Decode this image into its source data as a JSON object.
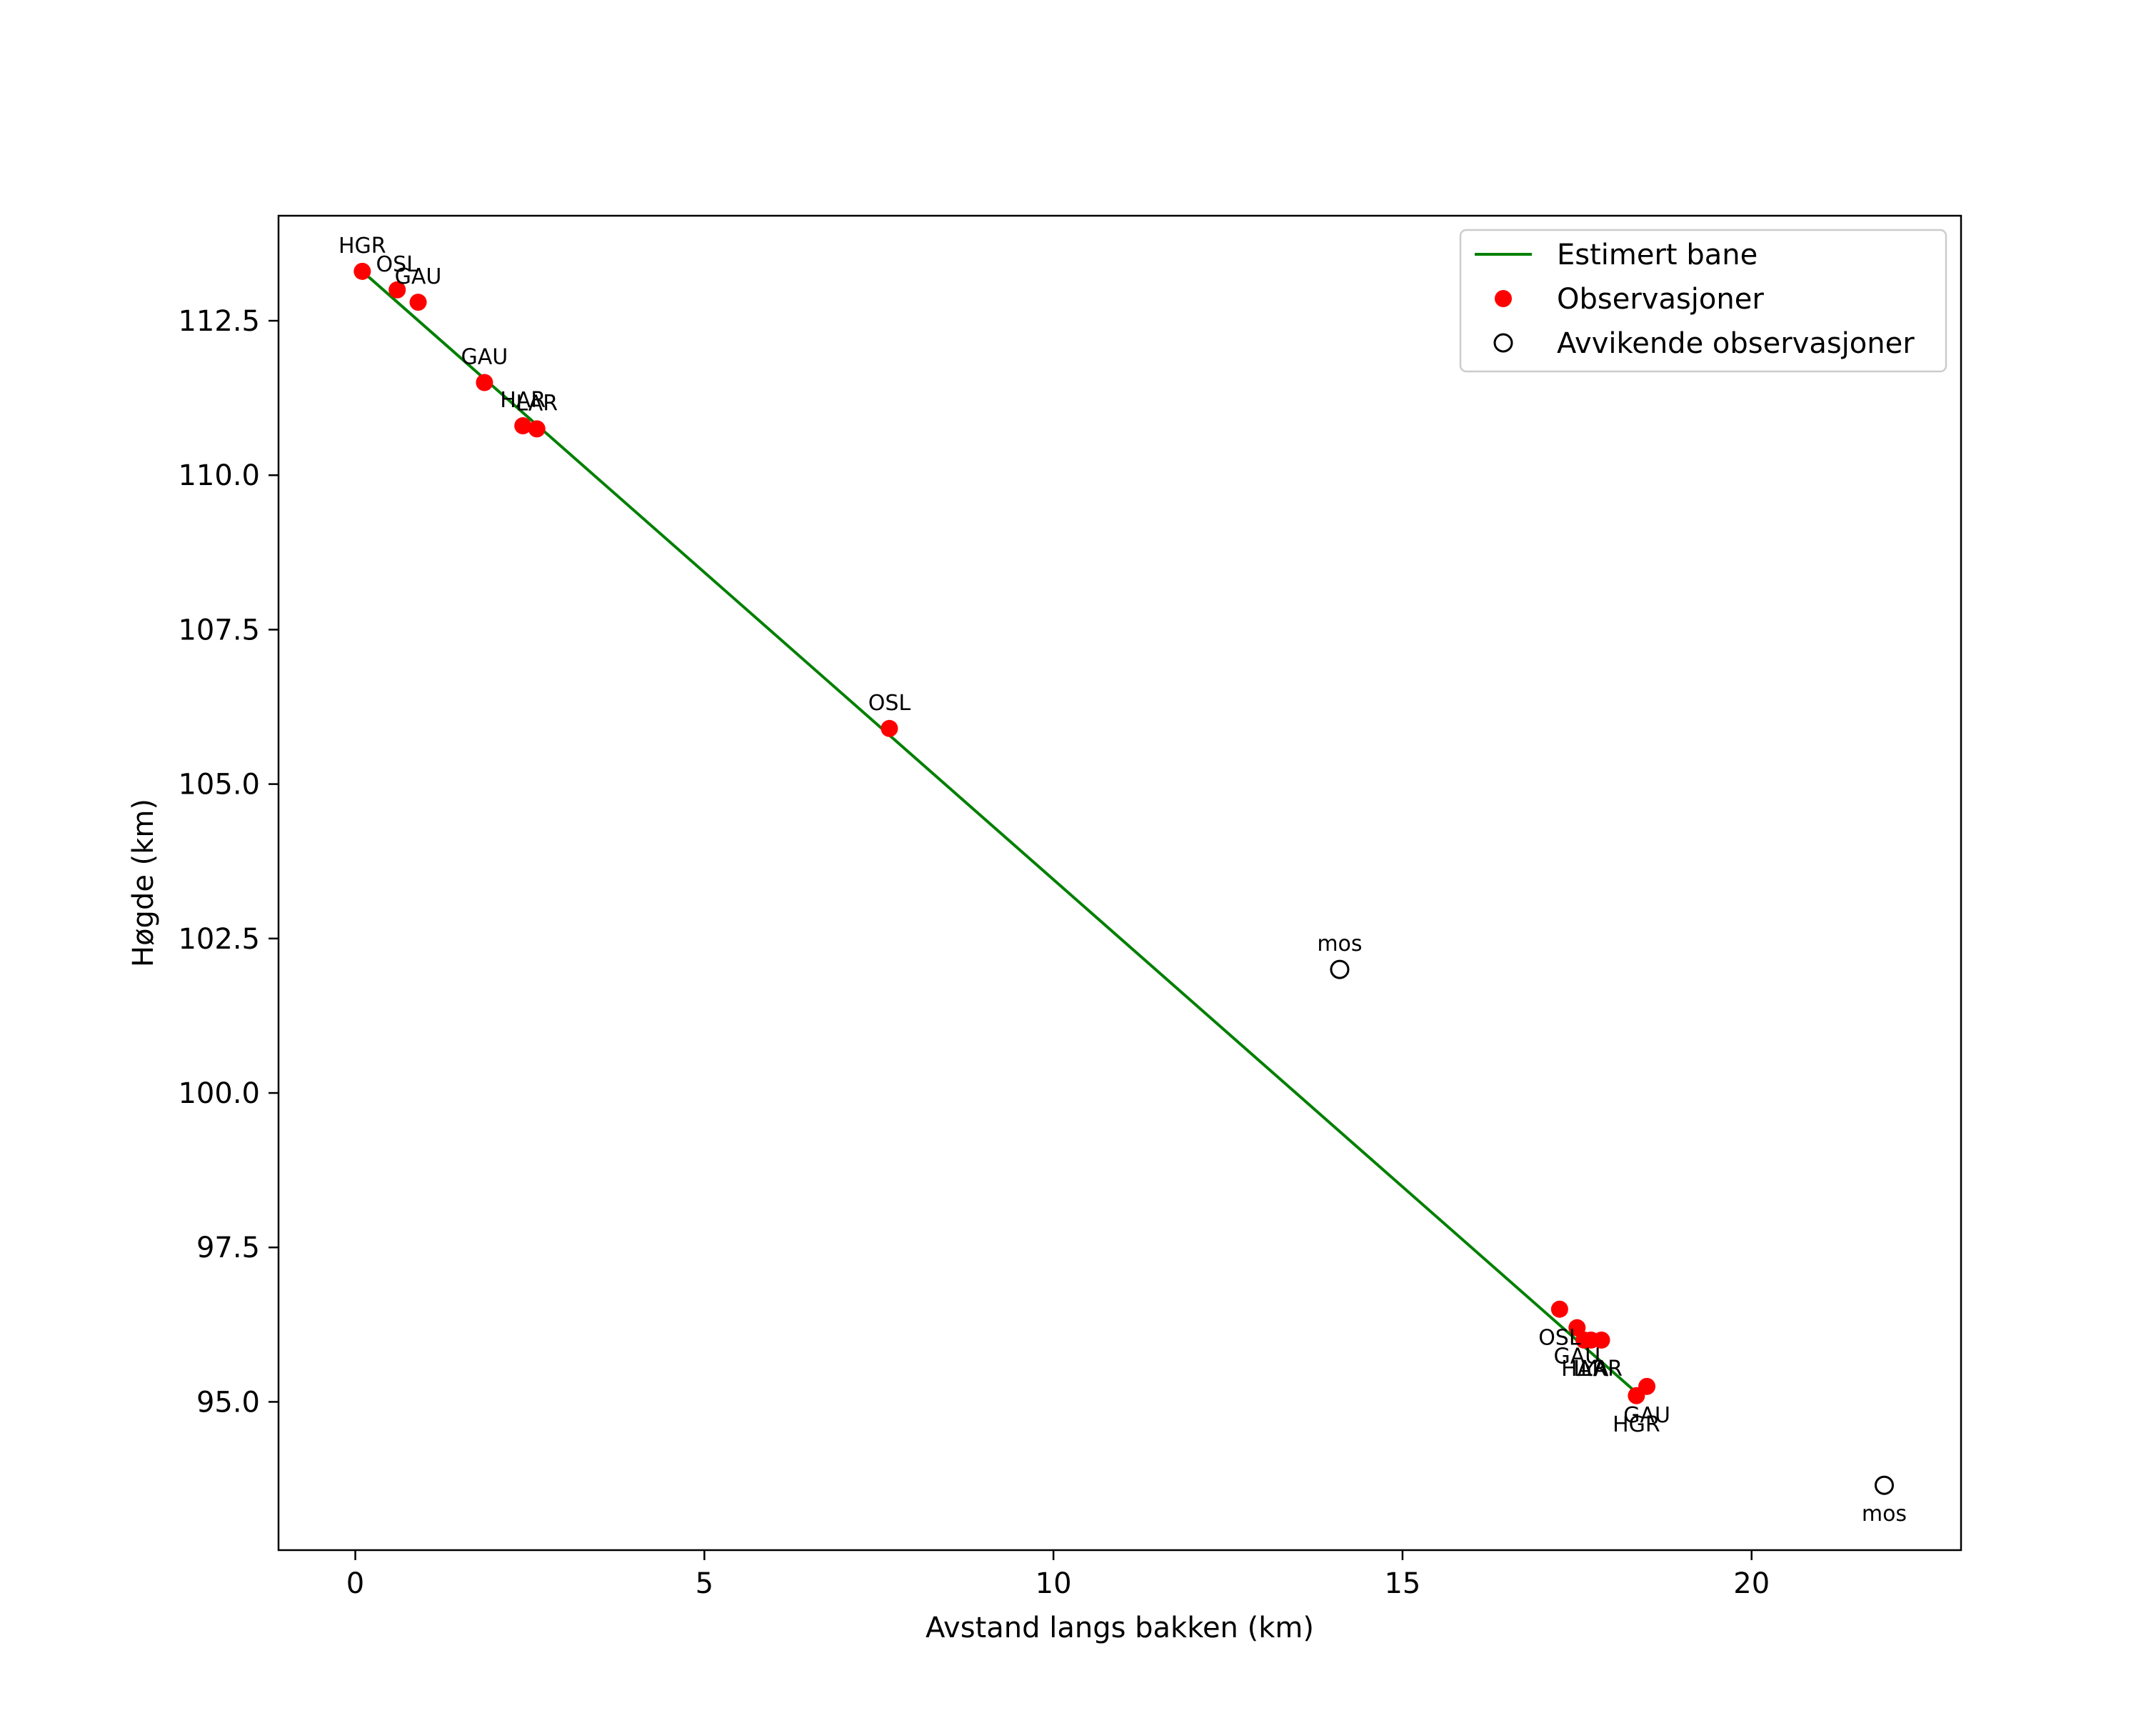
{
  "chart_data": {
    "type": "scatter",
    "title": "",
    "xlabel": "Avstand langs bakken (km)",
    "ylabel": "Høgde (km)",
    "xlim": [
      -1.1,
      23.0
    ],
    "ylim": [
      92.6,
      114.2
    ],
    "xticks": [
      0,
      5,
      10,
      15,
      20
    ],
    "yticks": [
      95.0,
      97.5,
      100.0,
      102.5,
      105.0,
      107.5,
      110.0,
      112.5
    ],
    "grid": false,
    "legend_position": "top-right",
    "series": [
      {
        "name": "Estimert bane",
        "kind": "line",
        "color": "#008000",
        "points": [
          [
            0.1,
            113.3
          ],
          [
            18.4,
            95.1
          ]
        ]
      },
      {
        "name": "Observasjoner",
        "kind": "points",
        "color": "#ff0000",
        "points": [
          {
            "x": 0.1,
            "y": 113.3,
            "label": "HGR",
            "label_pos": "above"
          },
          {
            "x": 0.6,
            "y": 113.0,
            "label": "OSL",
            "label_pos": "above"
          },
          {
            "x": 0.9,
            "y": 112.8,
            "label": "GAU",
            "label_pos": "above"
          },
          {
            "x": 1.85,
            "y": 111.5,
            "label": "GAU",
            "label_pos": "above"
          },
          {
            "x": 2.4,
            "y": 110.8,
            "label": "HAR",
            "label_pos": "above"
          },
          {
            "x": 2.6,
            "y": 110.75,
            "label": "LAR",
            "label_pos": "above"
          },
          {
            "x": 7.65,
            "y": 105.9,
            "label": "OSL",
            "label_pos": "above"
          },
          {
            "x": 17.25,
            "y": 96.5,
            "label": "OSL",
            "label_pos": "below"
          },
          {
            "x": 17.5,
            "y": 96.2,
            "label": "GAU",
            "label_pos": "below"
          },
          {
            "x": 17.6,
            "y": 96.0,
            "label": "HAR",
            "label_pos": "below"
          },
          {
            "x": 17.7,
            "y": 96.0,
            "label": "LYA",
            "label_pos": "below"
          },
          {
            "x": 17.85,
            "y": 96.0,
            "label": "LAR",
            "label_pos": "below"
          },
          {
            "x": 18.35,
            "y": 95.1,
            "label": "HGR",
            "label_pos": "below"
          },
          {
            "x": 18.5,
            "y": 95.25,
            "label": "GAU",
            "label_pos": "below"
          }
        ]
      },
      {
        "name": "Avvikende observasjoner",
        "kind": "open-points",
        "color": "#000000",
        "points": [
          {
            "x": 14.1,
            "y": 102.0,
            "label": "mos",
            "label_pos": "above"
          },
          {
            "x": 21.9,
            "y": 93.65,
            "label": "mos",
            "label_pos": "below"
          }
        ]
      }
    ]
  }
}
